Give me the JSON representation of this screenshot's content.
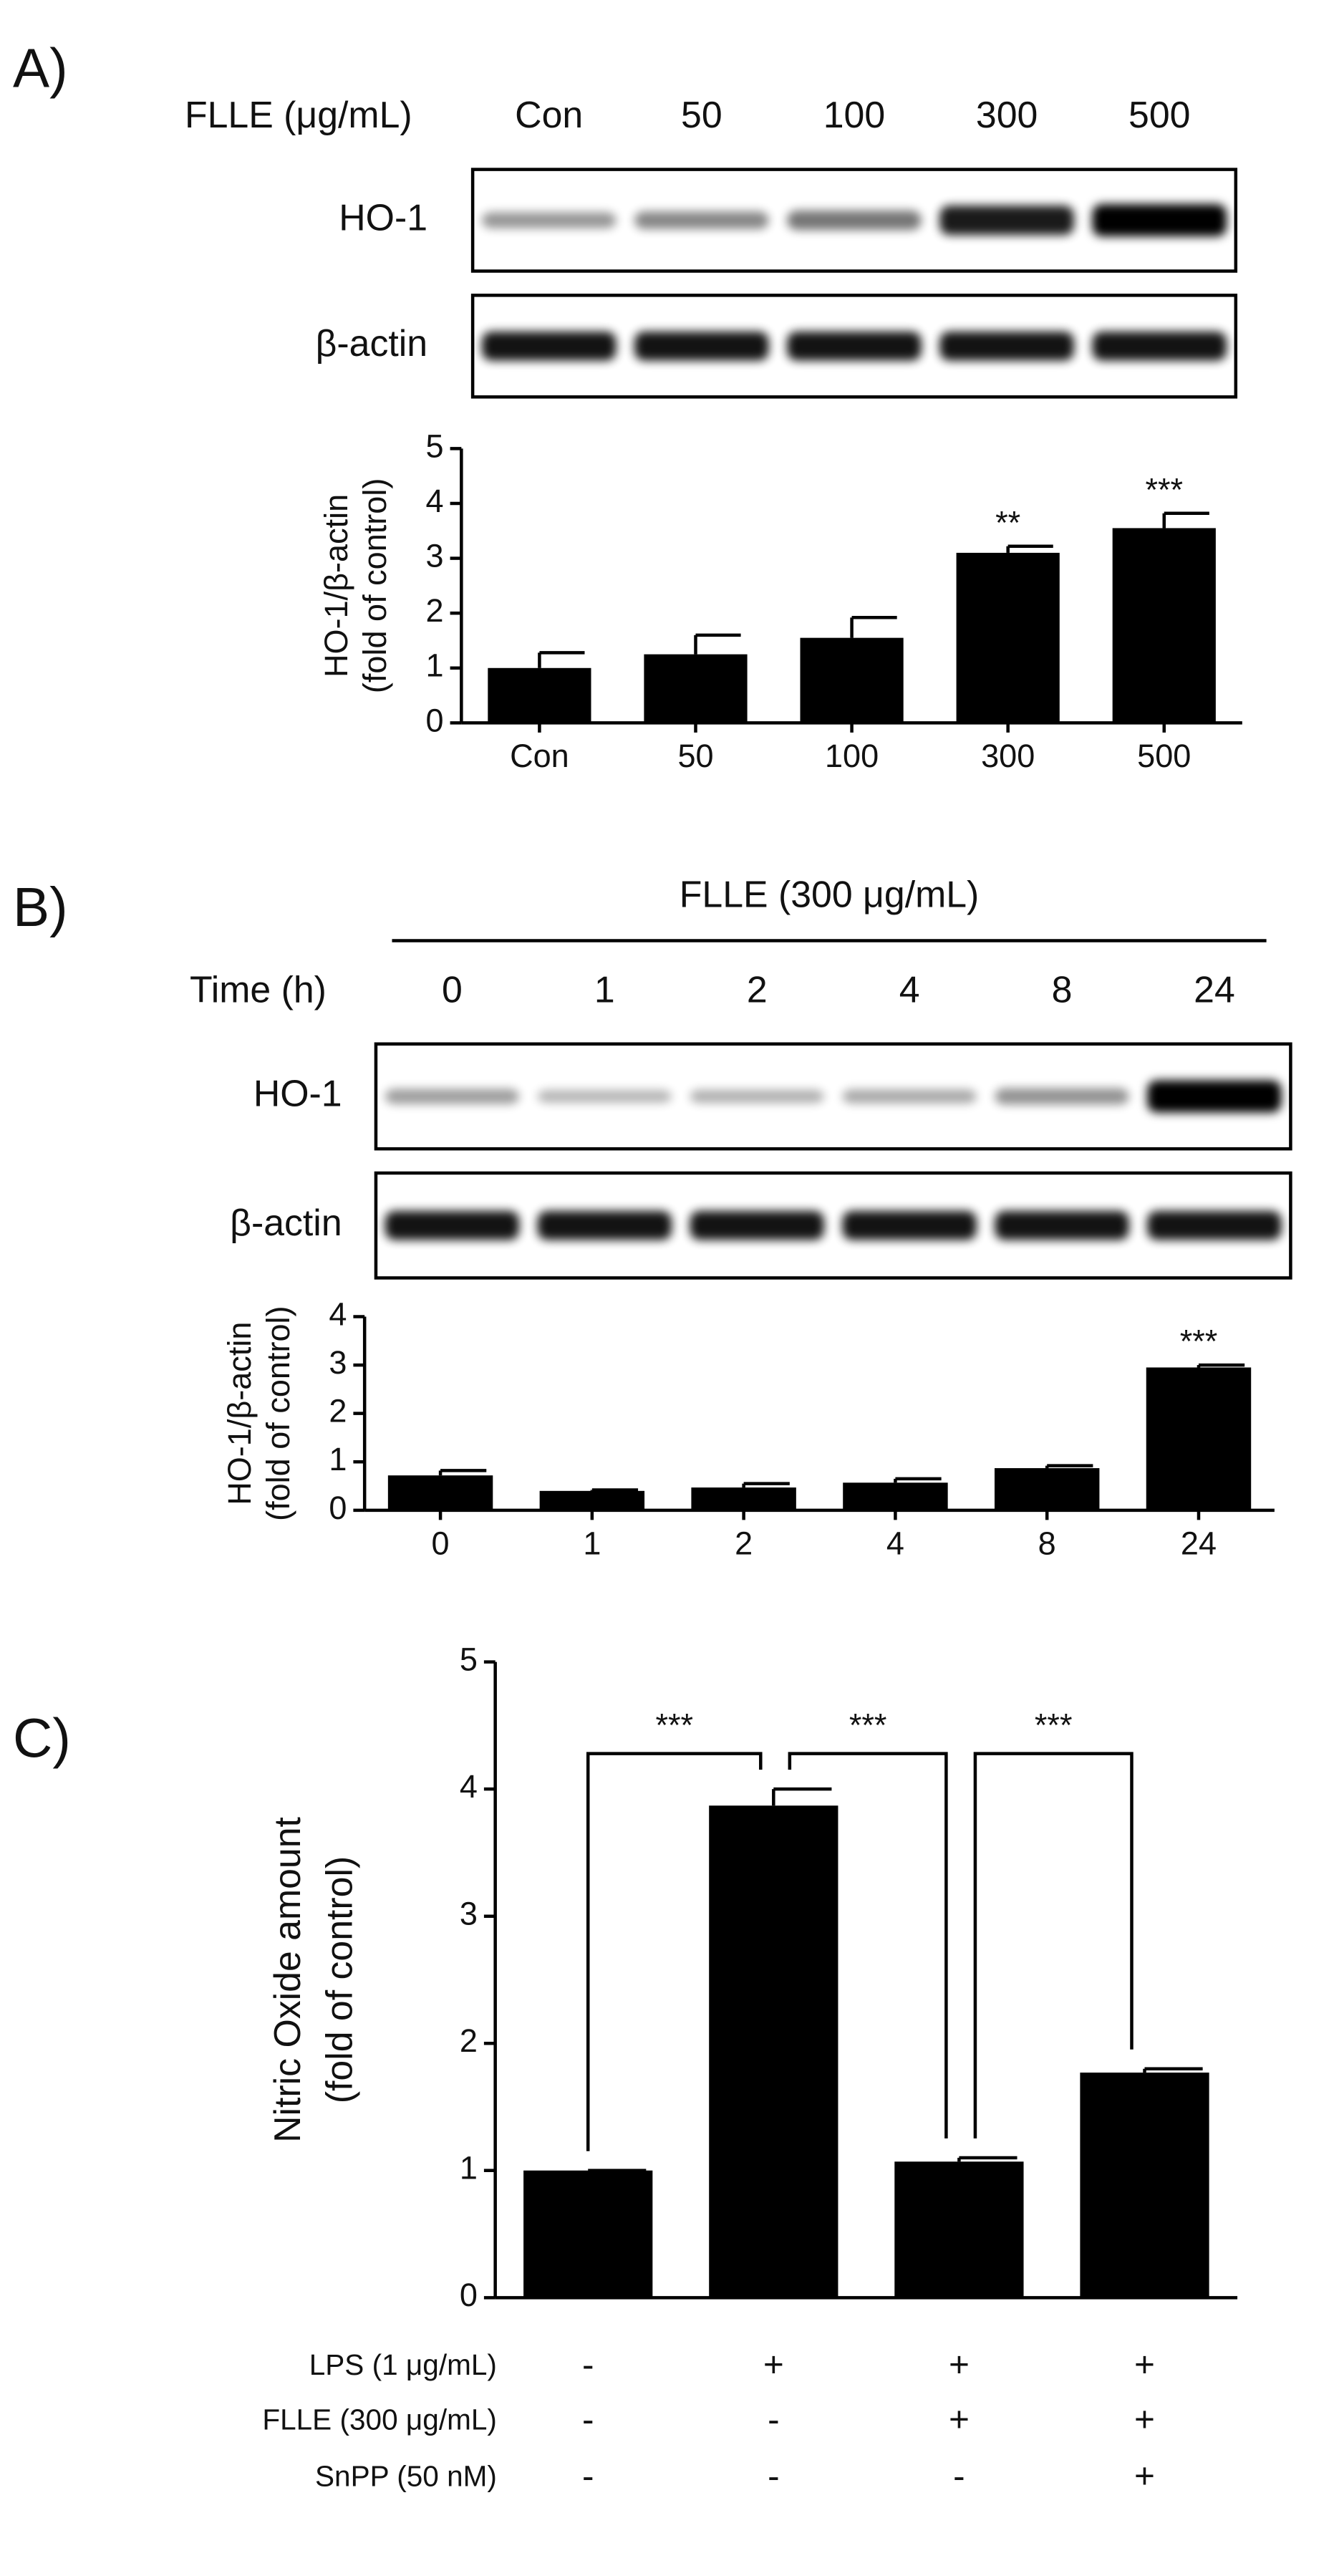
{
  "chart_data": [
    {
      "type": "bar",
      "panel": "A)",
      "blot": {
        "header_title": "FLLE (μg/mL)",
        "rows": [
          "HO-1",
          "β-actin"
        ]
      },
      "y_label": [
        "HO-1/β-actin",
        "(fold of control)"
      ],
      "categories": [
        "Con",
        "50",
        "100",
        "300",
        "500"
      ],
      "values": [
        1.0,
        1.25,
        1.55,
        3.1,
        3.55
      ],
      "error": [
        0.28,
        0.35,
        0.37,
        0.12,
        0.27
      ],
      "significance": [
        null,
        null,
        null,
        "**",
        "***"
      ],
      "color": "#000000",
      "ylim": [
        0,
        5
      ],
      "yticks": [
        0,
        1,
        2,
        3,
        4,
        5
      ]
    },
    {
      "type": "bar",
      "panel": "B)",
      "blot": {
        "top_title": "FLLE (300 μg/mL)",
        "header_title": "Time (h)",
        "rows": [
          "HO-1",
          "β-actin"
        ]
      },
      "y_label": [
        "HO-1/β-actin",
        "(fold of control)"
      ],
      "categories": [
        "0",
        "1",
        "2",
        "4",
        "8",
        "24"
      ],
      "values": [
        0.72,
        0.4,
        0.47,
        0.57,
        0.87,
        2.95
      ],
      "error": [
        0.1,
        0.02,
        0.08,
        0.08,
        0.05,
        0.05
      ],
      "significance": [
        null,
        null,
        null,
        null,
        null,
        "***"
      ],
      "color": "#000000",
      "ylim": [
        0,
        4
      ],
      "yticks": [
        0,
        1,
        2,
        3,
        4
      ]
    },
    {
      "type": "bar",
      "panel": "C)",
      "y_label": [
        "Nitric Oxide amount",
        "(fold of control)"
      ],
      "categories": [
        null,
        null,
        null,
        null
      ],
      "values": [
        1.0,
        3.87,
        1.07,
        1.77
      ],
      "error": [
        0,
        0.13,
        0.03,
        0.03
      ],
      "bracket_labels": [
        "***",
        "***",
        "***"
      ],
      "treatments": [
        {
          "name": "LPS (1 μg/mL)",
          "values": [
            "-",
            "+",
            "+",
            "+"
          ]
        },
        {
          "name": "FLLE (300 μg/mL)",
          "values": [
            "-",
            "-",
            "+",
            "+"
          ]
        },
        {
          "name": "SnPP (50 nM)",
          "values": [
            "-",
            "-",
            "-",
            "+"
          ]
        }
      ],
      "color": "#000000",
      "ylim": [
        0,
        5
      ],
      "yticks": [
        0,
        1,
        2,
        3,
        4,
        5
      ]
    }
  ]
}
